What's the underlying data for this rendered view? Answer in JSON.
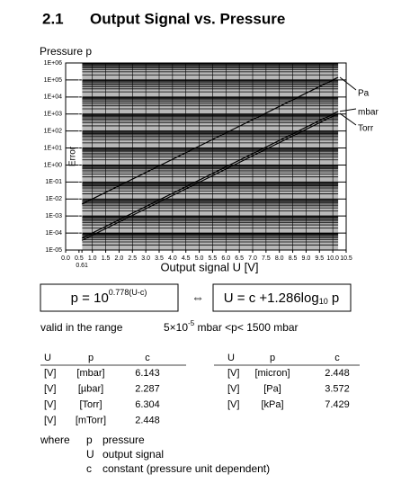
{
  "heading": {
    "number": "2.1",
    "title": "Output Signal vs. Pressure"
  },
  "chart_data": {
    "type": "line",
    "y_label": "Pressure p",
    "x_label": "Output signal U [V]",
    "annotation": "Error",
    "yscale": "log",
    "ylim": [
      1e-05,
      1000000
    ],
    "yticks": [
      {
        "value": 1e-05,
        "label": "1E-05"
      },
      {
        "value": 0.0001,
        "label": "1E-04"
      },
      {
        "value": 0.001,
        "label": "1E-03"
      },
      {
        "value": 0.01,
        "label": "1E-02"
      },
      {
        "value": 0.1,
        "label": "1E-01"
      },
      {
        "value": 1,
        "label": "1E+00"
      },
      {
        "value": 10,
        "label": "1E+01"
      },
      {
        "value": 100,
        "label": "1E+02"
      },
      {
        "value": 1000,
        "label": "1E+03"
      },
      {
        "value": 10000,
        "label": "1E+04"
      },
      {
        "value": 100000,
        "label": "1E+05"
      },
      {
        "value": 1000000,
        "label": "1E+06"
      }
    ],
    "xlim": [
      0,
      10.5
    ],
    "xticks": [
      {
        "value": 0,
        "label": "0.0"
      },
      0.5,
      0.61,
      {
        "value": 1,
        "label": "1.0"
      },
      1.5,
      {
        "value": 2,
        "label": "2.0"
      },
      2.5,
      {
        "value": 3,
        "label": "3.0"
      },
      3.5,
      {
        "value": 4,
        "label": "4.0"
      },
      4.5,
      {
        "value": 5,
        "label": "5.0"
      },
      5.5,
      {
        "value": 6,
        "label": "6.0"
      },
      6.5,
      {
        "value": 7,
        "label": "7.0"
      },
      7.5,
      {
        "value": 8,
        "label": "8.0"
      },
      8.5,
      {
        "value": 9,
        "label": "9.0"
      },
      9.5,
      {
        "value": 10,
        "label": "10.0"
      },
      10.5
    ],
    "x": [
      0.61,
      10.2
    ],
    "series": [
      {
        "name": "Pa",
        "color": "#000000",
        "values": [
          0.005,
          143000
        ]
      },
      {
        "name": "mbar",
        "color": "#000000",
        "values": [
          5e-05,
          1430
        ]
      },
      {
        "name": "Torr",
        "color": "#000000",
        "values": [
          3.7e-05,
          1070
        ]
      }
    ],
    "grid": true
  },
  "formulas": {
    "left": {
      "base": "p = 10",
      "exponent": "0.778(U-c)"
    },
    "arrow": "⇔",
    "right": {
      "text": "U = c +1.286log",
      "subscript": "10",
      "tail": " p"
    }
  },
  "range": {
    "label": "valid in the range",
    "base": "5×10",
    "exponent": "-5",
    "tail": " mbar <p< 1500 mbar"
  },
  "tables": [
    {
      "header": [
        "U",
        "p",
        "c"
      ],
      "rows": [
        [
          "[V]",
          "[mbar]",
          6.143
        ],
        [
          "[V]",
          "[µbar]",
          2.287
        ],
        [
          "[V]",
          "[Torr]",
          6.304
        ],
        [
          "[V]",
          "[mTorr]",
          2.448
        ]
      ]
    },
    {
      "header": [
        "U",
        "p",
        "c"
      ],
      "rows": [
        [
          "[V]",
          "[micron]",
          2.448
        ],
        [
          "[V]",
          "[Pa]",
          3.572
        ],
        [
          "[V]",
          "[kPa]",
          7.429
        ]
      ]
    }
  ],
  "where": {
    "label": "where",
    "items": [
      [
        "p",
        "pressure"
      ],
      [
        "U",
        "output signal"
      ],
      [
        "c",
        "constant (pressure unit dependent)"
      ]
    ]
  }
}
